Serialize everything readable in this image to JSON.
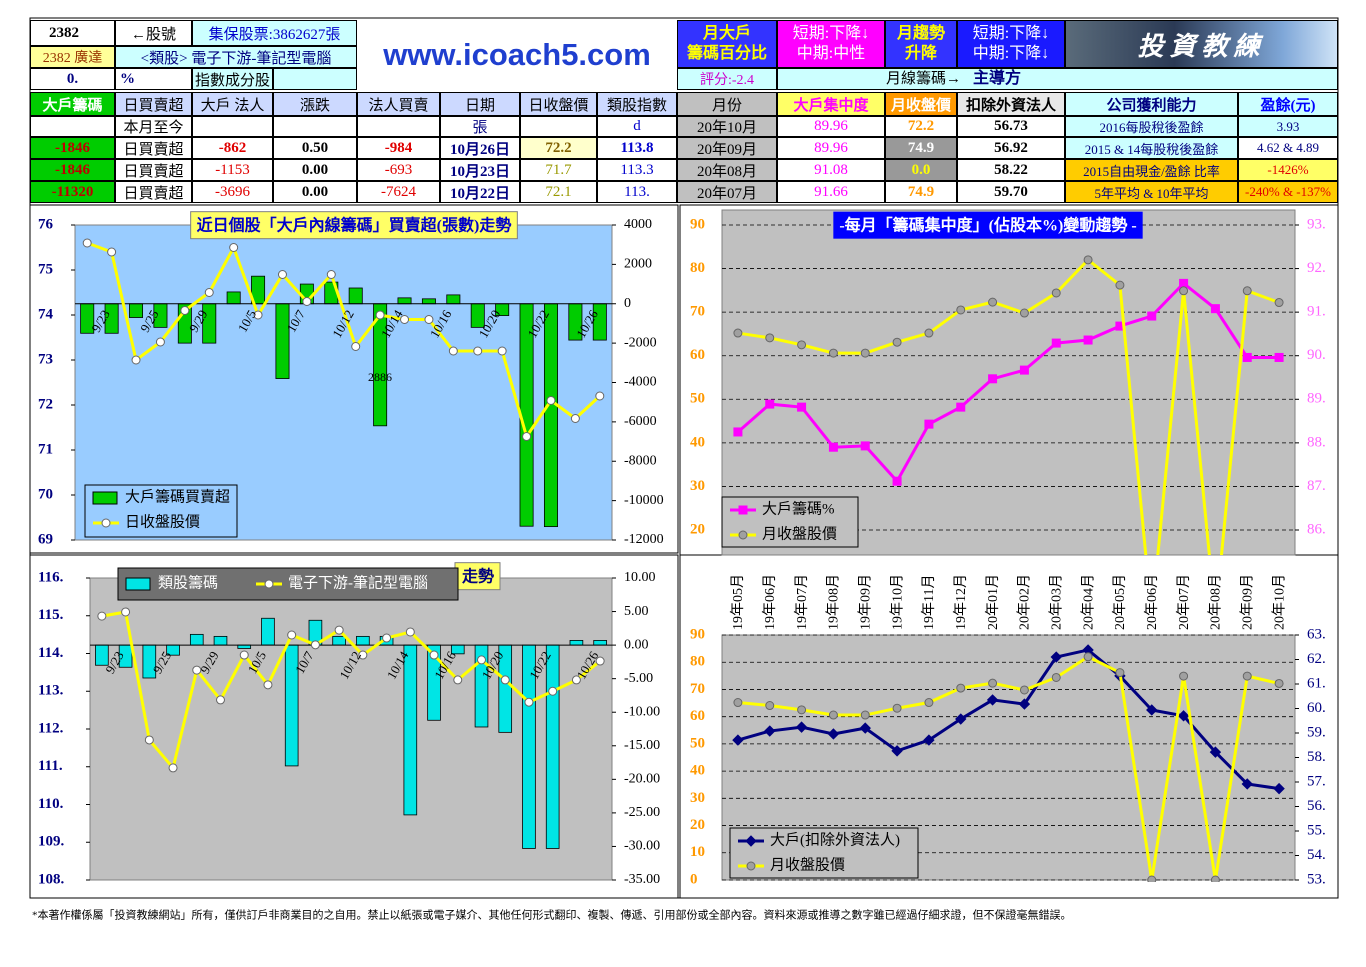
{
  "header": {
    "stock_code": "2382",
    "code_label": "←股號",
    "custody": "集保股票:3862627張",
    "stock_name": "2382 廣達",
    "sector": "<類股> 電子下游-筆記型電腦",
    "pct_value": "0.",
    "pct_unit": "%",
    "index_member": "指數成分股",
    "site": "www.icoach5.com",
    "monthly_major": [
      "月大戶",
      "籌碼百分比"
    ],
    "major_trend": [
      "短期:下降↓",
      "中期:中性"
    ],
    "monthly_trend": [
      "月趨勢",
      "升降"
    ],
    "trend_status": [
      "短期:下降↓",
      "中期:下降↓"
    ],
    "logo": "投資教練",
    "score": "評分:-2.4",
    "monthly_chips": "月線籌碼→",
    "leader": "主導方"
  },
  "table": {
    "columns": [
      "大戶籌碼",
      "日買賣超",
      "大戶 法人",
      "漲跌",
      "法人買賣",
      "日期",
      "日收盤價",
      "類股指數",
      "月份",
      "大戶集中度",
      "月收盤價",
      "扣除外資法人",
      "公司獲利能力",
      "盈餘(元)"
    ],
    "rows": [
      [
        null,
        "本月至今",
        null,
        null,
        null,
        "張",
        null,
        "d",
        "20年10月",
        "89.96",
        "72.2",
        "56.73",
        "2016每股稅後盈餘",
        "3.93"
      ],
      [
        "-1846",
        "日買賣超",
        "-862",
        "0.50",
        "-984",
        "10月26日",
        "72.2",
        "113.8",
        "20年09月",
        "89.96",
        "74.9",
        "56.92",
        "2015 & 14每股稅後盈餘",
        "4.62 & 4.89"
      ],
      [
        "-1846",
        "日買賣超",
        "-1153",
        "0.00",
        "-693",
        "10月23日",
        "71.7",
        "113.3",
        "20年08月",
        "91.08",
        "0.0",
        "58.22",
        "2015自由現金/盈餘 比率",
        "-1426%"
      ],
      [
        "-11320",
        "日買賣超",
        "-3696",
        "0.00",
        "-7624",
        "10月22日",
        "72.1",
        "113.",
        "20年07月",
        "91.66",
        "74.9",
        "59.70",
        "5年平均 & 10年平均",
        "-240% & -137%"
      ]
    ]
  },
  "chart_data": [
    {
      "type": "bar",
      "title": "近日個股「大戶內線籌碼」買賣超(張數)走勢",
      "annotation": "2886",
      "categories": [
        null,
        "9/23",
        null,
        "9/25",
        null,
        "9/29",
        null,
        "10/5",
        null,
        "10/7",
        null,
        "10/12",
        null,
        "10/14",
        null,
        "10/16",
        null,
        "10/20",
        null,
        "10/22",
        null,
        "10/26"
      ],
      "series": [
        {
          "name": "大戶籌碼買賣超",
          "type": "bar",
          "axis": "y2",
          "color": "#00cc00",
          "values": [
            -1500,
            -1500,
            -700,
            -1200,
            -2000,
            -2000,
            600,
            1400,
            -3800,
            1000,
            1100,
            800,
            -6200,
            300,
            250,
            450,
            -1200,
            -600,
            -11300,
            -11320,
            -1846,
            -1846
          ]
        },
        {
          "name": "日收盤股價",
          "type": "line",
          "axis": "y",
          "color": "#ffff00",
          "marker": "circle",
          "marker_color": "#ffffff",
          "values": [
            75.6,
            75.4,
            73.0,
            73.4,
            74.1,
            74.5,
            75.5,
            74.0,
            74.9,
            74.3,
            74.9,
            73.3,
            74.0,
            73.9,
            73.9,
            73.2,
            73.2,
            73.2,
            71.3,
            72.1,
            71.7,
            72.2
          ]
        }
      ],
      "ylim": [
        69,
        76
      ],
      "yticks": [
        69,
        70,
        71,
        72,
        73,
        74,
        75,
        76
      ],
      "y2lim": [
        -12000,
        4000
      ],
      "y2ticks": [
        -12000,
        -10000,
        -8000,
        -6000,
        -4000,
        -2000,
        0,
        2000,
        4000
      ],
      "grid": false,
      "legend": "lower left"
    },
    {
      "type": "line",
      "title": "-每月「籌碼集中度」(佔股本%)變動趨勢 -",
      "categories": [
        "19年05月",
        "19年06月",
        "19年07月",
        "19年08月",
        "19年09月",
        "19年10月",
        "19年11月",
        "19年12月",
        "20年01月",
        "20年02月",
        "20年03月",
        "20年04月",
        "20年05月",
        "20年06月",
        "20年07月",
        "20年08月",
        "20年09月",
        "20年10月"
      ],
      "series": [
        {
          "name": "大戶籌碼%",
          "type": "line",
          "axis": "y2",
          "color": "#ff00ff",
          "marker": "square",
          "marker_color": "#ff00ff",
          "values": [
            88.25,
            88.89,
            88.82,
            87.9,
            87.93,
            87.12,
            88.43,
            88.82,
            89.47,
            89.67,
            90.29,
            90.36,
            90.68,
            90.91,
            91.66,
            91.08,
            89.96,
            89.96
          ]
        },
        {
          "name": "月收盤股價",
          "type": "line",
          "axis": "y",
          "color": "#ffff00",
          "marker": "circle",
          "marker_color": "#a0a0a0",
          "values": [
            65.2,
            64.1,
            62.5,
            60.6,
            60.6,
            63.1,
            65.2,
            70.5,
            72.3,
            69.8,
            74.4,
            82.0,
            76.2,
            0,
            74.9,
            0,
            74.9,
            72.2
          ]
        }
      ],
      "ylim": [
        20,
        90
      ],
      "yticks": [
        20,
        30,
        40,
        50,
        60,
        70,
        80,
        90
      ],
      "y2lim": [
        86,
        93
      ],
      "y2ticks": [
        {
          "value": 86,
          "label": "86."
        },
        {
          "value": 87,
          "label": "87."
        },
        {
          "value": 88,
          "label": "88."
        },
        {
          "value": 89,
          "label": "89."
        },
        {
          "value": 90,
          "label": "90."
        },
        {
          "value": 91,
          "label": "91."
        },
        {
          "value": 92,
          "label": "92."
        },
        {
          "value": 93,
          "label": "93."
        }
      ],
      "grid": true,
      "legend": "lower left"
    },
    {
      "type": "bar",
      "title": "走勢",
      "categories": [
        null,
        "9/23",
        null,
        "9/25",
        null,
        "9/29",
        null,
        "10/5",
        null,
        "10/7",
        null,
        "10/12",
        null,
        "10/14",
        null,
        "10/16",
        null,
        "10/20",
        null,
        "10/22",
        null,
        "10/26"
      ],
      "series": [
        {
          "name": "類股籌碼",
          "type": "bar",
          "axis": "y2",
          "color": "#00e5e5",
          "values": [
            -3.0,
            -3.3,
            -4.9,
            -1.5,
            1.6,
            1.3,
            -0.5,
            4.0,
            -18.0,
            3.7,
            1.3,
            1.3,
            1.3,
            -25.3,
            -11.2,
            -1.3,
            -12.2,
            -13.0,
            -30.3,
            -30.3,
            0.7,
            0.7
          ]
        },
        {
          "name": "電子下游-筆記型電腦",
          "type": "line",
          "axis": "y",
          "color": "#ffff00",
          "marker": "circle",
          "marker_color": "#ffffff",
          "values": [
            114.99,
            115.1,
            111.71,
            110.97,
            113.56,
            112.77,
            113.96,
            113.17,
            114.49,
            114.23,
            114.62,
            113.96,
            114.41,
            114.57,
            113.96,
            113.3,
            113.83,
            113.3,
            112.71,
            113.0,
            113.3,
            113.8
          ]
        }
      ],
      "ylim": [
        108,
        116
      ],
      "yticks": [
        {
          "value": 108,
          "label": "108."
        },
        {
          "value": 109,
          "label": "109."
        },
        {
          "value": 110,
          "label": "110."
        },
        {
          "value": 111,
          "label": "111."
        },
        {
          "value": 112,
          "label": "112."
        },
        {
          "value": 113,
          "label": "113."
        },
        {
          "value": 114,
          "label": "114."
        },
        {
          "value": 115,
          "label": "115."
        },
        {
          "value": 116,
          "label": "116."
        }
      ],
      "y2lim": [
        -35,
        10
      ],
      "y2ticks": [
        {
          "value": -35,
          "label": "-35.00"
        },
        {
          "value": -30,
          "label": "-30.00"
        },
        {
          "value": -25,
          "label": "-25.00"
        },
        {
          "value": -20,
          "label": "-20.00"
        },
        {
          "value": -15,
          "label": "-15.00"
        },
        {
          "value": -10,
          "label": "-10.00"
        },
        {
          "value": -5,
          "label": "-5.00"
        },
        {
          "value": 0,
          "label": "0.00"
        },
        {
          "value": 5,
          "label": "5.00"
        },
        {
          "value": 10,
          "label": "10.00"
        }
      ],
      "grid": false,
      "legend": "upper left"
    },
    {
      "type": "line",
      "series": [
        {
          "name": "大戶(扣除外資法人)",
          "type": "line",
          "axis": "y2",
          "color": "#000080",
          "marker": "diamond",
          "marker_color": "#000080",
          "values": [
            58.71,
            59.08,
            59.24,
            58.96,
            59.2,
            58.27,
            58.71,
            59.57,
            60.35,
            60.18,
            62.1,
            62.39,
            61.33,
            59.94,
            59.7,
            58.22,
            56.92,
            56.73
          ]
        },
        {
          "name": "月收盤股價",
          "type": "line",
          "axis": "y",
          "color": "#ffff00",
          "marker": "circle",
          "marker_color": "#a0a0a0",
          "values": [
            65.2,
            64.1,
            62.5,
            60.6,
            60.6,
            63.1,
            65.2,
            70.5,
            72.3,
            69.8,
            74.4,
            82.0,
            76.2,
            0,
            74.9,
            0,
            74.9,
            72.2
          ]
        }
      ],
      "ylim": [
        0,
        90
      ],
      "yticks": [
        0,
        10,
        20,
        30,
        40,
        50,
        60,
        70,
        80,
        90
      ],
      "y2lim": [
        53,
        63
      ],
      "y2ticks": [
        {
          "value": 53,
          "label": "53."
        },
        {
          "value": 54,
          "label": "54."
        },
        {
          "value": 55,
          "label": "55."
        },
        {
          "value": 56,
          "label": "56."
        },
        {
          "value": 57,
          "label": "57."
        },
        {
          "value": 58,
          "label": "58."
        },
        {
          "value": 59,
          "label": "59."
        },
        {
          "value": 60,
          "label": "60."
        },
        {
          "value": 61,
          "label": "61."
        },
        {
          "value": 62,
          "label": "62."
        },
        {
          "value": 63,
          "label": "63."
        }
      ],
      "grid": true,
      "legend": "lower left"
    }
  ],
  "footer": "*本著作權係屬「投資教練網站」所有，僅供訂戶非商業目的之自用。禁止以紙張或電子媒介、其他任何形式翻印、複製、傳遞、引用部份或全部內容。資料來源或推導之數字雖已經過仔細求證，但不保證毫無錯誤。"
}
